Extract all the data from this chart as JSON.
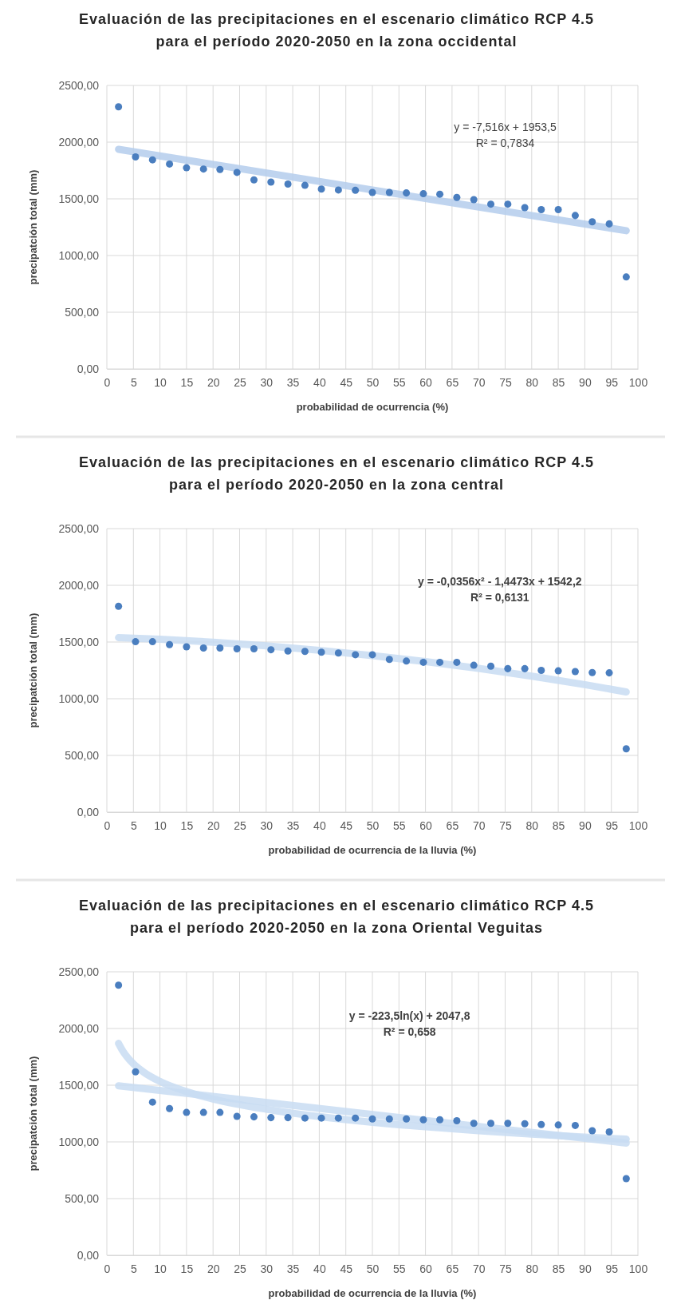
{
  "chart_data": [
    {
      "type": "scatter",
      "title": "Evaluación de las precipitaciones en el escenario climático RCP 4.5 para el período 2020-2050 en la zona occidental",
      "xlabel": "probabilidad de ocurrencia (%)",
      "ylabel": "precipatción total (mm)",
      "xlim": [
        0,
        100
      ],
      "xticks": [
        0,
        5,
        10,
        15,
        20,
        25,
        30,
        35,
        40,
        45,
        50,
        55,
        60,
        65,
        70,
        75,
        80,
        85,
        90,
        95,
        100
      ],
      "ylim": [
        0,
        2500
      ],
      "yticks": [
        {
          "value": 0,
          "label": "0,00"
        },
        {
          "value": 500,
          "label": "500,00"
        },
        {
          "value": 1000,
          "label": "1000,00"
        },
        {
          "value": 1500,
          "label": "1500,00"
        },
        {
          "value": 2000,
          "label": "2000,00"
        },
        {
          "value": 2500,
          "label": "2500,00"
        }
      ],
      "grid": true,
      "x": [
        2.2,
        5.4,
        8.6,
        11.8,
        15.0,
        18.2,
        21.3,
        24.5,
        27.7,
        30.9,
        34.1,
        37.3,
        40.4,
        43.6,
        46.8,
        50.0,
        53.2,
        56.4,
        59.6,
        62.7,
        65.9,
        69.1,
        72.3,
        75.5,
        78.7,
        81.8,
        85.0,
        88.2,
        91.4,
        94.6,
        97.8
      ],
      "annotations": [
        "y = -7,516x + 1953,5",
        "R² = 0,7834"
      ],
      "series": [
        {
          "marker": "circle",
          "color": "#4a7ebf",
          "values": [
            2312,
            1870,
            1844,
            1807,
            1774,
            1763,
            1759,
            1733,
            1667,
            1648,
            1630,
            1619,
            1586,
            1578,
            1575,
            1556,
            1556,
            1552,
            1545,
            1541,
            1512,
            1493,
            1453,
            1453,
            1423,
            1405,
            1405,
            1353,
            1298,
            1279,
            811
          ]
        },
        {
          "type": "line",
          "marker": "none",
          "color": "#b4cdec",
          "x": [
            2.2,
            97.8
          ],
          "values": [
            1937,
            1219
          ]
        }
      ]
    },
    {
      "type": "scatter",
      "title": "Evaluación de las precipitaciones en el escenario climático RCP 4.5 para el período 2020-2050 en la zona central",
      "xlabel": "probabilidad de ocurrencia de la lluvia (%)",
      "ylabel": "precipatción total (mm)",
      "xlim": [
        0,
        100
      ],
      "xticks": [
        0,
        5,
        10,
        15,
        20,
        25,
        30,
        35,
        40,
        45,
        50,
        55,
        60,
        65,
        70,
        75,
        80,
        85,
        90,
        95,
        100
      ],
      "ylim": [
        0,
        2500
      ],
      "yticks": [
        {
          "value": 0,
          "label": "0,00"
        },
        {
          "value": 500,
          "label": "500,00"
        },
        {
          "value": 1000,
          "label": "1000,00"
        },
        {
          "value": 1500,
          "label": "1500,00"
        },
        {
          "value": 2000,
          "label": "2000,00"
        },
        {
          "value": 2500,
          "label": "2500,00"
        }
      ],
      "grid": true,
      "x": [
        2.2,
        5.4,
        8.6,
        11.8,
        15.0,
        18.2,
        21.3,
        24.5,
        27.7,
        30.9,
        34.1,
        37.3,
        40.4,
        43.6,
        46.8,
        50.0,
        53.2,
        56.4,
        59.6,
        62.7,
        65.9,
        69.1,
        72.3,
        75.5,
        78.7,
        81.8,
        85.0,
        88.2,
        91.4,
        94.6,
        97.8
      ],
      "annotations": [
        "y = -0,0356x² - 1,4473x + 1542,2",
        "R² = 0,6131"
      ],
      "series": [
        {
          "marker": "circle",
          "color": "#4a7ebf",
          "values": [
            1815,
            1503,
            1503,
            1477,
            1458,
            1447,
            1447,
            1440,
            1440,
            1432,
            1421,
            1417,
            1410,
            1403,
            1388,
            1388,
            1347,
            1332,
            1321,
            1321,
            1321,
            1295,
            1287,
            1265,
            1265,
            1250,
            1246,
            1239,
            1231,
            1228,
            558
          ]
        },
        {
          "type": "line",
          "marker": "none",
          "color": "#c8dcf2",
          "x": [
            2.2,
            10,
            20,
            30,
            40,
            50,
            60,
            70,
            80,
            90,
            97.8
          ],
          "values": [
            1539,
            1524,
            1499,
            1467,
            1427,
            1381,
            1327,
            1267,
            1199,
            1124,
            1060
          ]
        }
      ]
    },
    {
      "type": "scatter",
      "title": "Evaluación de las precipitaciones en el escenario climático RCP 4.5 para el período 2020-2050 en la zona Oriental Veguitas",
      "xlabel": "probabilidad de ocurrencia de la lluvia (%)",
      "ylabel": "precipatción total (mm)",
      "xlim": [
        0,
        100
      ],
      "xticks": [
        0,
        5,
        10,
        15,
        20,
        25,
        30,
        35,
        40,
        45,
        50,
        55,
        60,
        65,
        70,
        75,
        80,
        85,
        90,
        95,
        100
      ],
      "ylim": [
        0,
        2500
      ],
      "yticks": [
        {
          "value": 0,
          "label": "0,00"
        },
        {
          "value": 500,
          "label": "500,00"
        },
        {
          "value": 1000,
          "label": "1000,00"
        },
        {
          "value": 1500,
          "label": "1500,00"
        },
        {
          "value": 2000,
          "label": "2000,00"
        },
        {
          "value": 2500,
          "label": "2500,00"
        }
      ],
      "grid": true,
      "x": [
        2.2,
        5.4,
        8.6,
        11.8,
        15.0,
        18.2,
        21.3,
        24.5,
        27.7,
        30.9,
        34.1,
        37.3,
        40.4,
        43.6,
        46.8,
        50.0,
        53.2,
        56.4,
        59.6,
        62.7,
        65.9,
        69.1,
        72.3,
        75.5,
        78.7,
        81.8,
        85.0,
        88.2,
        91.4,
        94.6,
        97.8
      ],
      "annotations": [
        "y = -223,5ln(x) + 2047,8",
        "R² = 0,658"
      ],
      "series": [
        {
          "marker": "circle",
          "color": "#4a7ebf",
          "values": [
            2382,
            1618,
            1351,
            1294,
            1260,
            1260,
            1260,
            1225,
            1221,
            1214,
            1214,
            1210,
            1210,
            1210,
            1210,
            1202,
            1202,
            1202,
            1195,
            1195,
            1187,
            1164,
            1164,
            1164,
            1160,
            1153,
            1149,
            1145,
            1099,
            1088,
            676
          ]
        },
        {
          "type": "line",
          "marker": "none",
          "color": "#c8dcf2",
          "x": [
            2.2,
            3,
            4,
            5,
            7,
            10,
            15,
            20,
            30,
            40,
            50,
            60,
            70,
            80,
            90,
            97.8
          ],
          "values": [
            1869,
            1802,
            1738,
            1688,
            1613,
            1533,
            1443,
            1378,
            1288,
            1223,
            1173,
            1133,
            1098,
            1068,
            1042,
            1024
          ]
        },
        {
          "type": "line",
          "marker": "none",
          "color": "#c8dcf2",
          "x": [
            2.2,
            97.8
          ],
          "values": [
            1495,
            990
          ]
        }
      ]
    }
  ]
}
